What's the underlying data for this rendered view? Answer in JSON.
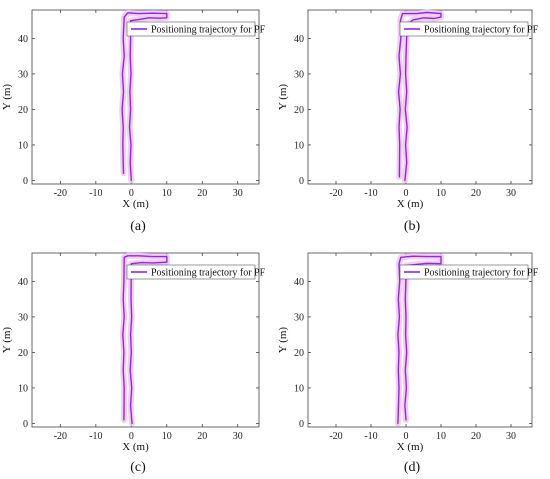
{
  "figure": {
    "panels": [
      {
        "caption": "(a)"
      },
      {
        "caption": "(b)"
      },
      {
        "caption": "(c)"
      },
      {
        "caption": "(d)"
      }
    ]
  },
  "colors": {
    "trajectory": "#8a2be2",
    "halo": "#f2c4f0",
    "axis": "#444444"
  },
  "chart_data": [
    {
      "type": "line",
      "xlabel": "X (m)",
      "ylabel": "Y (m)",
      "xlim": [
        -28,
        36
      ],
      "ylim": [
        -1,
        48
      ],
      "xticks": [
        -20,
        -10,
        0,
        10,
        20,
        30
      ],
      "yticks": [
        0,
        10,
        20,
        30,
        40
      ],
      "legend_position": "top-right",
      "grid": false,
      "series": [
        {
          "name": "Positioning trajectory for PF",
          "x": [
            0,
            -0.3,
            -0.1,
            -0.5,
            -0.2,
            -0.4,
            -0.1,
            -0.3,
            -0.2,
            -0.2,
            2.0,
            5.0,
            8.0,
            10.0,
            10.0,
            6.0,
            2.0,
            -1.0,
            -2.0,
            -2.3,
            -2.0,
            -2.5,
            -2.2,
            -2.6,
            -2.3,
            -2.4,
            -2.2
          ],
          "y": [
            0,
            5,
            10,
            15,
            20,
            25,
            30,
            35,
            40,
            45.0,
            45.3,
            45.8,
            45.7,
            45.8,
            47.0,
            47.1,
            47.0,
            47.2,
            46.0,
            40,
            35,
            30,
            25,
            20,
            15,
            10,
            2
          ]
        }
      ]
    },
    {
      "type": "line",
      "xlabel": "X (m)",
      "ylabel": "Y (m)",
      "xlim": [
        -28,
        36
      ],
      "ylim": [
        -1,
        48
      ],
      "xticks": [
        -20,
        -10,
        0,
        10,
        20,
        30
      ],
      "yticks": [
        0,
        10,
        20,
        30,
        40
      ],
      "legend_position": "top-right",
      "grid": false,
      "series": [
        {
          "name": "Positioning trajectory for PF",
          "x": [
            -0.3,
            0.2,
            -0.1,
            0.3,
            -0.2,
            0.2,
            -0.1,
            0.0,
            0.3,
            2.0,
            5.0,
            8.0,
            10.0,
            10.0,
            6.0,
            3.0,
            -1.0,
            -1.6,
            -1.5,
            -2.0,
            -1.6,
            -2.1,
            -1.7,
            -2.0,
            -1.8,
            -1.9
          ],
          "y": [
            0,
            5,
            10,
            15,
            20,
            25,
            30,
            35,
            43.8,
            45.2,
            45.8,
            45.6,
            46.0,
            47.0,
            47.3,
            47.0,
            47.0,
            45,
            40,
            35,
            30,
            25,
            20,
            15,
            10,
            1
          ]
        }
      ]
    },
    {
      "type": "line",
      "xlabel": "X (m)",
      "ylabel": "Y (m)",
      "xlim": [
        -28,
        36
      ],
      "ylim": [
        -1,
        48
      ],
      "xticks": [
        -20,
        -10,
        0,
        10,
        20,
        30
      ],
      "yticks": [
        0,
        10,
        20,
        30,
        40
      ],
      "legend_position": "top-right",
      "grid": false,
      "series": [
        {
          "name": "Positioning trajectory for PF",
          "x": [
            0.2,
            -0.2,
            0.1,
            -0.3,
            0.0,
            -0.2,
            0.1,
            -0.1,
            0.0,
            3.0,
            6.0,
            10.0,
            10.0,
            6.0,
            2.0,
            -1.0,
            -2.0,
            -2.1,
            -2.3,
            -2.0,
            -2.4,
            -2.1,
            -2.3,
            -2.0,
            -2.1
          ],
          "y": [
            0,
            5,
            10,
            15,
            20,
            25,
            30,
            35,
            45.0,
            45.3,
            45.2,
            45.4,
            47.0,
            47.0,
            47.2,
            47.2,
            46.8,
            40,
            35,
            30,
            25,
            20,
            15,
            10,
            1
          ]
        }
      ]
    },
    {
      "type": "line",
      "xlabel": "X (m)",
      "ylabel": "Y (m)",
      "xlim": [
        -28,
        36
      ],
      "ylim": [
        -1,
        48
      ],
      "xticks": [
        -20,
        -10,
        0,
        10,
        20,
        30
      ],
      "yticks": [
        0,
        10,
        20,
        30,
        40
      ],
      "legend_position": "top-right",
      "grid": false,
      "series": [
        {
          "name": "Positioning trajectory for PF",
          "x": [
            0.0,
            -0.3,
            0.1,
            -0.2,
            0.2,
            -0.1,
            0.0,
            -0.2,
            0.1,
            3.0,
            6.0,
            10.0,
            10.0,
            6.0,
            2.0,
            -1.5,
            -2.0,
            -1.8,
            -2.2,
            -1.9,
            -2.3,
            -2.0,
            -2.2,
            -2.0,
            -2.3
          ],
          "y": [
            1,
            5,
            10,
            15,
            20,
            25,
            30,
            35,
            44.5,
            44.8,
            45.1,
            45.0,
            47.0,
            47.0,
            47.1,
            46.8,
            45.0,
            40,
            35,
            30,
            25,
            20,
            15,
            10,
            0
          ]
        }
      ]
    }
  ]
}
